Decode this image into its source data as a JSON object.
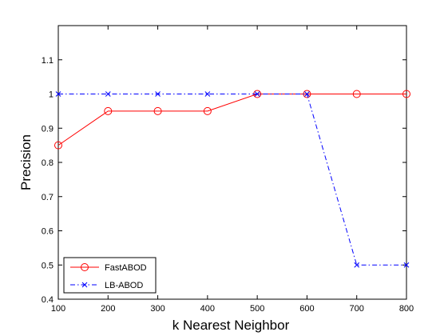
{
  "chart_data": {
    "type": "line",
    "xlabel": "k Nearest Neighbor",
    "ylabel": "Precision",
    "xlim": [
      100,
      800
    ],
    "ylim": [
      0.4,
      1.2
    ],
    "xticks": [
      100,
      200,
      300,
      400,
      500,
      600,
      700,
      800
    ],
    "yticks": [
      0.4,
      0.5,
      0.6,
      0.7,
      0.8,
      0.9,
      1,
      1.1
    ],
    "xtick_labels": [
      "100",
      "200",
      "300",
      "400",
      "500",
      "600",
      "700",
      "800"
    ],
    "ytick_labels": [
      "0.4",
      "0.5",
      "0.6",
      "0.7",
      "0.8",
      "0.9",
      "1",
      "1.1"
    ],
    "x": [
      100,
      200,
      300,
      400,
      500,
      600,
      700,
      800
    ],
    "series": [
      {
        "name": "FastABOD",
        "values": [
          0.85,
          0.95,
          0.95,
          0.95,
          1.0,
          1.0,
          1.0,
          1.0
        ],
        "color": "#ff0000",
        "marker": "circle",
        "line_style": "solid"
      },
      {
        "name": "LB-ABOD",
        "values": [
          1.0,
          1.0,
          1.0,
          1.0,
          1.0,
          1.0,
          0.5,
          0.5
        ],
        "color": "#0000ff",
        "marker": "x",
        "line_style": "dash-dot"
      }
    ],
    "grid": false,
    "legend_position": "bottom-left"
  }
}
